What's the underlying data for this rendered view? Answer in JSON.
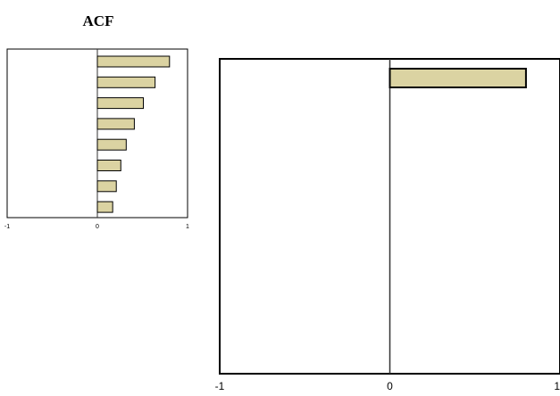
{
  "title": "ACF",
  "bar_color": "#dbd3a2",
  "bar_stroke": "#000000",
  "chart_data": [
    {
      "type": "bar",
      "orientation": "horizontal",
      "values": [
        0.8,
        0.64,
        0.51,
        0.41,
        0.32,
        0.26,
        0.21,
        0.17
      ],
      "xlim": [
        -1,
        1
      ],
      "xticks": [
        "-1",
        "0",
        "1"
      ]
    },
    {
      "type": "bar",
      "orientation": "horizontal",
      "values": [
        0.8
      ],
      "xlim": [
        -1,
        1
      ],
      "xticks": [
        "-1",
        "0",
        "1"
      ]
    }
  ]
}
